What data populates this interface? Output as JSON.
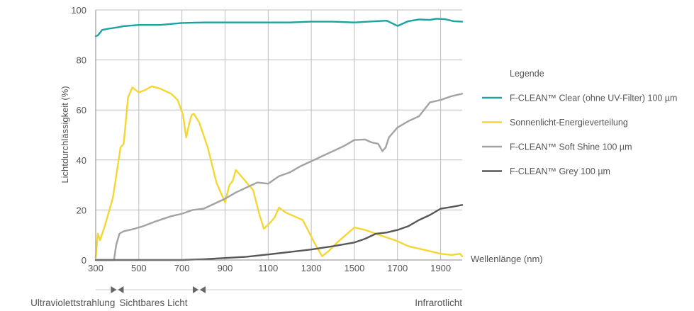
{
  "chart_data": {
    "type": "line",
    "ylabel": "Lichtdurchlässigkeit (%)",
    "xlabel": "Wellenlänge (nm)",
    "xlim": [
      300,
      2000
    ],
    "ylim": [
      0,
      100
    ],
    "x_ticks": [
      300,
      500,
      700,
      900,
      1100,
      1300,
      1500,
      1700,
      1900
    ],
    "y_ticks": [
      0,
      20,
      40,
      60,
      80,
      100
    ],
    "grid": "vertical and horizontal",
    "legend": {
      "title": "Legende",
      "placement": "right"
    },
    "series": [
      {
        "name": "F-CLEAN™ Clear (ohne UV-Filter) 100 µm",
        "color": "#1aa3a0",
        "points": [
          [
            300,
            89.5
          ],
          [
            310,
            89.8
          ],
          [
            330,
            92
          ],
          [
            360,
            92.5
          ],
          [
            400,
            93
          ],
          [
            430,
            93.5
          ],
          [
            500,
            94
          ],
          [
            600,
            94
          ],
          [
            700,
            94.8
          ],
          [
            800,
            95
          ],
          [
            900,
            95
          ],
          [
            1000,
            95
          ],
          [
            1100,
            95
          ],
          [
            1200,
            95
          ],
          [
            1300,
            95.3
          ],
          [
            1400,
            95.3
          ],
          [
            1500,
            95
          ],
          [
            1600,
            95.5
          ],
          [
            1650,
            95.7
          ],
          [
            1700,
            93.6
          ],
          [
            1750,
            95.5
          ],
          [
            1800,
            96.2
          ],
          [
            1850,
            96
          ],
          [
            1880,
            96.5
          ],
          [
            1920,
            96.3
          ],
          [
            1960,
            95.5
          ],
          [
            2000,
            95.3
          ]
        ]
      },
      {
        "name": "Sonnenlicht-Energieverteilung",
        "color": "#f5d733",
        "points": [
          [
            300,
            1
          ],
          [
            310,
            10.5
          ],
          [
            320,
            8
          ],
          [
            340,
            13
          ],
          [
            380,
            25
          ],
          [
            415,
            45
          ],
          [
            430,
            46.5
          ],
          [
            450,
            65
          ],
          [
            470,
            69
          ],
          [
            500,
            67
          ],
          [
            530,
            68
          ],
          [
            560,
            69.5
          ],
          [
            600,
            68.5
          ],
          [
            650,
            66.5
          ],
          [
            680,
            64
          ],
          [
            705,
            58
          ],
          [
            720,
            49
          ],
          [
            735,
            55
          ],
          [
            745,
            58
          ],
          [
            755,
            58.5
          ],
          [
            780,
            55
          ],
          [
            820,
            45
          ],
          [
            860,
            31
          ],
          [
            900,
            23
          ],
          [
            920,
            30
          ],
          [
            935,
            31.5
          ],
          [
            950,
            36
          ],
          [
            970,
            34
          ],
          [
            1000,
            31
          ],
          [
            1030,
            28
          ],
          [
            1060,
            18
          ],
          [
            1080,
            12.5
          ],
          [
            1110,
            15
          ],
          [
            1130,
            17
          ],
          [
            1150,
            21
          ],
          [
            1180,
            19
          ],
          [
            1220,
            17.5
          ],
          [
            1260,
            16
          ],
          [
            1290,
            11
          ],
          [
            1320,
            6
          ],
          [
            1350,
            1.5
          ],
          [
            1380,
            3.5
          ],
          [
            1420,
            7
          ],
          [
            1460,
            10
          ],
          [
            1500,
            13
          ],
          [
            1550,
            12
          ],
          [
            1600,
            10.5
          ],
          [
            1650,
            9
          ],
          [
            1700,
            7.5
          ],
          [
            1750,
            5.5
          ],
          [
            1800,
            4.5
          ],
          [
            1850,
            3.5
          ],
          [
            1900,
            2.5
          ],
          [
            1950,
            2
          ],
          [
            1990,
            2.5
          ],
          [
            2000,
            1.5
          ]
        ]
      },
      {
        "name": "F-CLEAN™ Soft Shine 100 µm",
        "color": "#a3a3a3",
        "points": [
          [
            300,
            0
          ],
          [
            385,
            0
          ],
          [
            395,
            6
          ],
          [
            410,
            10.5
          ],
          [
            430,
            11.5
          ],
          [
            480,
            12.5
          ],
          [
            520,
            13.5
          ],
          [
            580,
            15.5
          ],
          [
            650,
            17.5
          ],
          [
            700,
            18.5
          ],
          [
            750,
            20
          ],
          [
            800,
            20.5
          ],
          [
            850,
            22.5
          ],
          [
            900,
            24.5
          ],
          [
            950,
            27
          ],
          [
            1000,
            29
          ],
          [
            1050,
            31
          ],
          [
            1100,
            30.5
          ],
          [
            1150,
            33.5
          ],
          [
            1200,
            35
          ],
          [
            1250,
            37.5
          ],
          [
            1300,
            39.5
          ],
          [
            1350,
            41.5
          ],
          [
            1400,
            43.5
          ],
          [
            1450,
            45.5
          ],
          [
            1500,
            48
          ],
          [
            1550,
            48.2
          ],
          [
            1580,
            47
          ],
          [
            1610,
            46.5
          ],
          [
            1630,
            43.5
          ],
          [
            1645,
            45
          ],
          [
            1660,
            49
          ],
          [
            1700,
            53
          ],
          [
            1750,
            55.5
          ],
          [
            1800,
            57.5
          ],
          [
            1850,
            63
          ],
          [
            1900,
            64
          ],
          [
            1950,
            65.5
          ],
          [
            2000,
            66.5
          ]
        ]
      },
      {
        "name": "F-CLEAN™ Grey 100 µm",
        "color": "#575757",
        "points": [
          [
            300,
            0
          ],
          [
            700,
            0
          ],
          [
            800,
            0.3
          ],
          [
            900,
            0.8
          ],
          [
            1000,
            1.3
          ],
          [
            1100,
            2.2
          ],
          [
            1200,
            3.2
          ],
          [
            1300,
            4.2
          ],
          [
            1400,
            5.5
          ],
          [
            1500,
            7
          ],
          [
            1550,
            8.5
          ],
          [
            1600,
            10.5
          ],
          [
            1650,
            11
          ],
          [
            1700,
            12
          ],
          [
            1750,
            13.5
          ],
          [
            1800,
            16
          ],
          [
            1850,
            18
          ],
          [
            1900,
            20.5
          ],
          [
            1950,
            21.2
          ],
          [
            2000,
            22
          ]
        ]
      }
    ],
    "regions": [
      {
        "label": "Ultraviolettstrahlung",
        "from": null,
        "to": 400
      },
      {
        "label": "Sichtbares Licht",
        "from": 400,
        "to": 780
      },
      {
        "label": "Infrarotlicht",
        "from": 780,
        "to": null
      }
    ]
  }
}
